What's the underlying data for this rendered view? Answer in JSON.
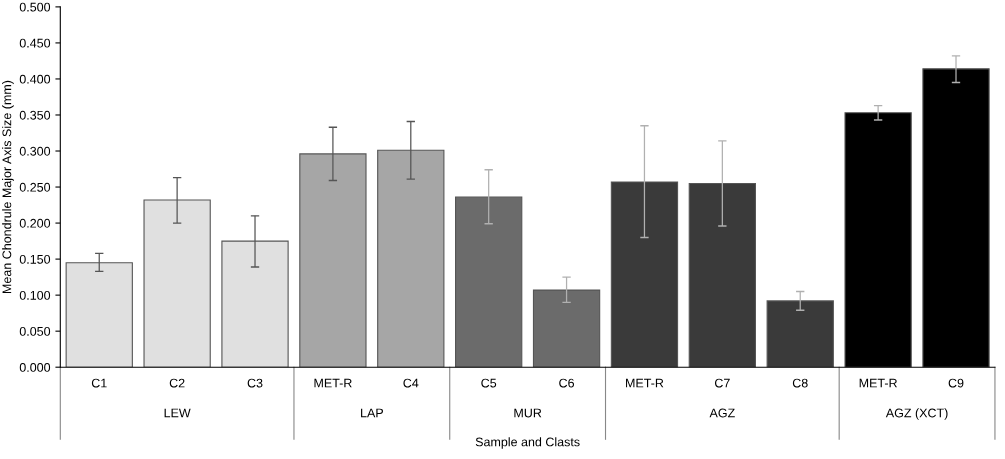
{
  "chart_data": {
    "type": "bar",
    "xlabel": "Sample and Clasts",
    "ylabel": "Mean Chondrule Major Axis Size (mm)",
    "categories": [
      "C1",
      "C2",
      "C3",
      "MET-R",
      "C4",
      "C5",
      "C6",
      "MET-R",
      "C7",
      "C8",
      "MET-R",
      "C9"
    ],
    "values": [
      0.145,
      0.232,
      0.175,
      0.296,
      0.301,
      0.236,
      0.107,
      0.257,
      0.255,
      0.092,
      0.353,
      0.414
    ],
    "colors": [
      "#e0e0e0",
      "#e0e0e0",
      "#e0e0e0",
      "#a6a6a6",
      "#a6a6a6",
      "#6b6b6b",
      "#6b6b6b",
      "#3a3a3a",
      "#3a3a3a",
      "#3a3a3a",
      "#000000",
      "#000000"
    ],
    "errors": [
      [
        0.133,
        0.158
      ],
      [
        0.2,
        0.263
      ],
      [
        0.139,
        0.21
      ],
      [
        0.259,
        0.333
      ],
      [
        0.261,
        0.341
      ],
      [
        0.199,
        0.274
      ],
      [
        0.09,
        0.125
      ],
      [
        0.18,
        0.335
      ],
      [
        0.196,
        0.314
      ],
      [
        0.079,
        0.105
      ],
      [
        0.343,
        0.363
      ],
      [
        0.395,
        0.432
      ]
    ],
    "annotations": [
      "LEW",
      "LAP",
      "MUR",
      "AGZ",
      "AGZ (XCT)"
    ],
    "ylim": [
      0,
      0.5
    ],
    "yticks": [
      {
        "value": 0,
        "label": "0.000"
      },
      {
        "value": 0.05,
        "label": "0.050"
      },
      {
        "value": 0.1,
        "label": "0.100"
      },
      {
        "value": 0.15,
        "label": "0.150"
      },
      {
        "value": 0.2,
        "label": "0.200"
      },
      {
        "value": 0.25,
        "label": "0.250"
      },
      {
        "value": 0.3,
        "label": "0.300"
      },
      {
        "value": 0.35,
        "label": "0.350"
      },
      {
        "value": 0.4,
        "label": "0.400"
      },
      {
        "value": 0.45,
        "label": "0.450"
      },
      {
        "value": 0.5,
        "label": "0.500"
      }
    ],
    "grid": false,
    "legend": false
  }
}
